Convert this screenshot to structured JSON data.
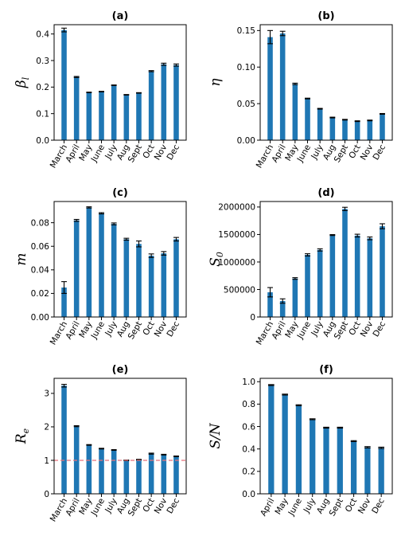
{
  "chart_data": [
    {
      "panel": "(a)",
      "type": "bar",
      "categories": [
        "March",
        "April",
        "May",
        "June",
        "July",
        "Aug",
        "Sept",
        "Oct",
        "Nov",
        "Dec"
      ],
      "values": [
        0.415,
        0.238,
        0.18,
        0.183,
        0.207,
        0.171,
        0.178,
        0.26,
        0.286,
        0.283
      ],
      "errors": [
        0.007,
        0.002,
        0.001,
        0.001,
        0.001,
        0.001,
        0.001,
        0.002,
        0.004,
        0.004
      ],
      "ylabel": "β_l",
      "ylabel_main": "β",
      "ylabel_sub": "l",
      "ylim": [
        0,
        0.435
      ],
      "yticks": [
        0,
        0.1,
        0.2,
        0.3,
        0.4
      ],
      "ytick_labels": [
        "0.0",
        "0.1",
        "0.2",
        "0.3",
        "0.4"
      ],
      "color": "#1f77b4"
    },
    {
      "panel": "(b)",
      "type": "bar",
      "categories": [
        "March",
        "April",
        "May",
        "June",
        "July",
        "Aug",
        "Sept",
        "Oct",
        "Nov",
        "Dec"
      ],
      "values": [
        0.141,
        0.146,
        0.077,
        0.057,
        0.043,
        0.031,
        0.028,
        0.026,
        0.027,
        0.036
      ],
      "errors": [
        0.009,
        0.003,
        0.001,
        0.0005,
        0.0005,
        0.0005,
        0.0005,
        0.0005,
        0.0005,
        0.0005
      ],
      "ylabel": "η",
      "ylabel_main": "η",
      "ylabel_sub": "",
      "ylim": [
        0,
        0.158
      ],
      "yticks": [
        0,
        0.05,
        0.1,
        0.15
      ],
      "ytick_labels": [
        "0.00",
        "0.05",
        "0.10",
        "0.15"
      ],
      "color": "#1f77b4"
    },
    {
      "panel": "(c)",
      "type": "bar",
      "categories": [
        "March",
        "April",
        "May",
        "June",
        "July",
        "Aug",
        "Sept",
        "Oct",
        "Nov",
        "Dec"
      ],
      "values": [
        0.025,
        0.082,
        0.093,
        0.088,
        0.079,
        0.066,
        0.062,
        0.052,
        0.054,
        0.066
      ],
      "errors": [
        0.005,
        0.0008,
        0.0005,
        0.0005,
        0.0008,
        0.0008,
        0.0025,
        0.0015,
        0.0015,
        0.0015
      ],
      "ylabel": "m",
      "ylabel_main": "m",
      "ylabel_sub": "",
      "ylim": [
        0,
        0.098
      ],
      "yticks": [
        0,
        0.02,
        0.04,
        0.06,
        0.08
      ],
      "ytick_labels": [
        "0.00",
        "0.02",
        "0.04",
        "0.06",
        "0.08"
      ],
      "color": "#1f77b4"
    },
    {
      "panel": "(d)",
      "type": "bar",
      "categories": [
        "March",
        "April",
        "May",
        "June",
        "July",
        "Aug",
        "Sept",
        "Oct",
        "Nov",
        "Dec"
      ],
      "values": [
        450000,
        290000,
        700000,
        1130000,
        1220000,
        1490000,
        1965000,
        1480000,
        1430000,
        1650000
      ],
      "errors": [
        85000,
        40000,
        15000,
        20000,
        20000,
        8000,
        30000,
        25000,
        25000,
        45000
      ],
      "ylabel": "S_0",
      "ylabel_main": "S",
      "ylabel_sub": "0",
      "ylim": [
        0,
        2100000
      ],
      "yticks": [
        0,
        500000,
        1000000,
        1500000,
        2000000
      ],
      "ytick_labels": [
        "0",
        "500000",
        "1000000",
        "1500000",
        "2000000"
      ],
      "color": "#1f77b4"
    },
    {
      "panel": "(e)",
      "type": "bar",
      "categories": [
        "March",
        "April",
        "May",
        "June",
        "July",
        "Aug",
        "Sept",
        "Oct",
        "Nov",
        "Dec"
      ],
      "values": [
        3.23,
        2.02,
        1.46,
        1.35,
        1.31,
        1.0,
        1.02,
        1.2,
        1.17,
        1.12
      ],
      "errors": [
        0.04,
        0.015,
        0.01,
        0.01,
        0.01,
        0.01,
        0.01,
        0.015,
        0.01,
        0.01
      ],
      "ylabel": "R_e",
      "ylabel_main": "R",
      "ylabel_sub": "e",
      "ylim": [
        0,
        3.45
      ],
      "yticks": [
        0,
        1,
        2,
        3
      ],
      "ytick_labels": [
        "0",
        "1",
        "2",
        "3"
      ],
      "reference_line": 1.0,
      "reference_color": "#e8727a",
      "color": "#1f77b4"
    },
    {
      "panel": "(f)",
      "type": "bar",
      "categories": [
        "April",
        "May",
        "June",
        "July",
        "Aug",
        "Sept",
        "Oct",
        "Nov",
        "Dec"
      ],
      "values": [
        0.97,
        0.885,
        0.79,
        0.665,
        0.59,
        0.59,
        0.47,
        0.415,
        0.41
      ],
      "errors": [
        0.004,
        0.004,
        0.004,
        0.004,
        0.004,
        0.004,
        0.004,
        0.006,
        0.006
      ],
      "ylabel": "S/N",
      "ylabel_main": "S/N",
      "ylabel_sub": "",
      "ylim": [
        0,
        1.03
      ],
      "yticks": [
        0,
        0.2,
        0.4,
        0.6,
        0.8,
        1.0
      ],
      "ytick_labels": [
        "0.0",
        "0.2",
        "0.4",
        "0.6",
        "0.8",
        "1.0"
      ],
      "color": "#1f77b4"
    }
  ]
}
